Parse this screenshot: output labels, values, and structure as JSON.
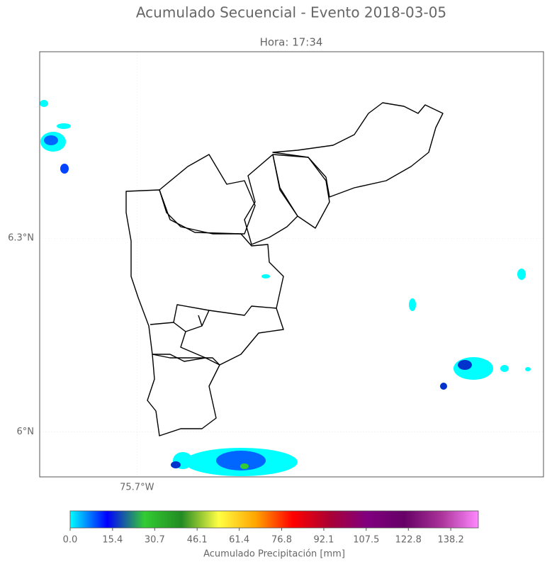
{
  "chart_data": {
    "type": "map",
    "title": "Acumulado Secuencial - Evento 2018-03-05",
    "subtitle": "Hora: 17:34",
    "lonlim": [
      -75.851,
      -75.069
    ],
    "latlim": [
      5.93,
      6.589
    ],
    "lon_ticks": [
      {
        "value": -75.7,
        "label": "75.7°W"
      }
    ],
    "lat_ticks": [
      {
        "value": 6.3,
        "label": "6.3°N"
      },
      {
        "value": 6,
        "label": "6°N"
      }
    ],
    "colorbar": {
      "label": "Acumulado Precipitación [mm]",
      "clim": [
        0,
        148.2
      ],
      "ticks": [
        {
          "value": 0,
          "label": "0.0"
        },
        15.4,
        30.7,
        46.1,
        61.4,
        76.8,
        92.1,
        107.5,
        122.8,
        138.2
      ],
      "colormap": [
        "#00ffff",
        "#0000ff",
        "#33cc33",
        "#228b22",
        "#ffff44",
        "#ffa500",
        "#ff0000",
        "#aa0033",
        "#800080",
        "#660066",
        "#aa3399",
        "#ff88ff"
      ]
    }
  }
}
